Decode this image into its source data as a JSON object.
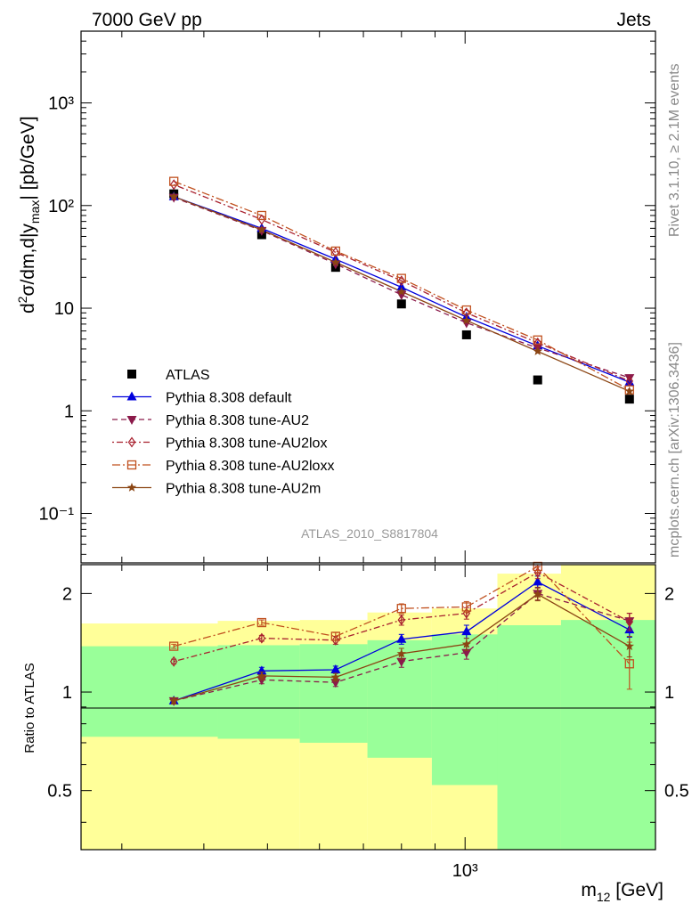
{
  "header": {
    "left": "7000 GeV pp",
    "right": "Jets"
  },
  "side_labels": {
    "rivet": "Rivet 3.1.10, ≥ 2.1M events",
    "mcplots": "mcplots.cern.ch [arXiv:1306.3436]"
  },
  "analysis_id": "ATLAS_2010_S8817804",
  "chart_data": [
    {
      "type": "scatter",
      "panel": "main",
      "xlabel_main": "m",
      "xlabel_sub": "12",
      "xlabel_unit": "[GeV]",
      "ylabel": "d²σ/dm,d|y_max| [pb/GeV]",
      "x_scale": "log",
      "y_scale": "log",
      "xlim": [
        260,
        1950
      ],
      "ylim": [
        0.033,
        5000
      ],
      "x_tick_labels": [
        {
          "v": 1000,
          "label": "10³"
        }
      ],
      "y_tick_labels": [
        {
          "v": 0.1,
          "label": "10⁻¹"
        },
        {
          "v": 1,
          "label": "1"
        },
        {
          "v": 10,
          "label": "10"
        },
        {
          "v": 100,
          "label": "10²"
        },
        {
          "v": 1000,
          "label": "10³"
        }
      ],
      "x": [
        360,
        490,
        635,
        800,
        1005,
        1290,
        1780
      ],
      "series": [
        {
          "name": "ATLAS",
          "marker": "square",
          "color": "#000000",
          "dash": "none",
          "values": [
            130,
            52,
            25,
            11,
            5.5,
            2.0,
            1.3
          ]
        },
        {
          "name": "Pythia 8.308 default",
          "marker": "triangle-up",
          "color": "#0000dd",
          "dash": "none",
          "values": [
            122,
            60,
            30,
            16,
            8.2,
            4.3,
            1.9
          ]
        },
        {
          "name": "Pythia 8.308 tune-AU2",
          "marker": "triangle-down",
          "color": "#8b1a4a",
          "dash": "dashed",
          "values": [
            120,
            57,
            27,
            13.5,
            7.2,
            4.1,
            2.1
          ]
        },
        {
          "name": "Pythia 8.308 tune-AU2lox",
          "marker": "diamond",
          "color": "#a8202e",
          "dash": "dotdash",
          "values": [
            160,
            73,
            35,
            18.5,
            9.0,
            4.6,
            1.95
          ]
        },
        {
          "name": "Pythia 8.308 tune-AU2loxx",
          "marker": "square-open",
          "color": "#c0501e",
          "dash": "dashdot",
          "values": [
            172,
            80,
            36,
            19.5,
            9.6,
            4.9,
            1.6
          ]
        },
        {
          "name": "Pythia 8.308 tune-AU2m",
          "marker": "star",
          "color": "#8b4513",
          "dash": "none",
          "values": [
            122,
            58,
            28,
            14.5,
            7.6,
            3.8,
            1.55
          ]
        }
      ]
    },
    {
      "type": "line",
      "panel": "ratio",
      "ylabel": "Ratio to ATLAS",
      "x_scale": "log",
      "y_scale": "log",
      "xlim": [
        260,
        1950
      ],
      "ylim": [
        0.33,
        2.45
      ],
      "y_tick_labels": [
        {
          "v": 0.5,
          "label": "0.5"
        },
        {
          "v": 1,
          "label": "1"
        },
        {
          "v": 2,
          "label": "2"
        }
      ],
      "bin_edges": [
        260,
        420,
        560,
        710,
        890,
        1120,
        1400,
        1950
      ],
      "band_green": [
        [
          0.73,
          1.38
        ],
        [
          0.72,
          1.39
        ],
        [
          0.7,
          1.4
        ],
        [
          0.63,
          1.44
        ],
        [
          0.52,
          1.5
        ],
        [
          0.3,
          1.6
        ],
        [
          0.3,
          1.66
        ]
      ],
      "band_yellow": [
        [
          0.3,
          1.62
        ],
        [
          0.3,
          1.65
        ],
        [
          0.3,
          1.66
        ],
        [
          0.3,
          1.75
        ],
        [
          0.3,
          1.8
        ],
        [
          0.3,
          2.3
        ],
        [
          0.3,
          2.5
        ]
      ],
      "x": [
        360,
        490,
        635,
        800,
        1005,
        1290,
        1780
      ],
      "series": [
        {
          "name": "Pythia 8.308 default",
          "marker": "triangle-up",
          "color": "#0000dd",
          "dash": "none",
          "values": [
            0.94,
            1.16,
            1.17,
            1.45,
            1.53,
            2.17,
            1.55
          ],
          "err": [
            0.02,
            0.03,
            0.03,
            0.05,
            0.07,
            0.09,
            0.08
          ]
        },
        {
          "name": "Pythia 8.308 tune-AU2",
          "marker": "triangle-down",
          "color": "#8b1a4a",
          "dash": "dashed",
          "values": [
            0.94,
            1.09,
            1.07,
            1.24,
            1.32,
            2.0,
            1.65
          ],
          "err": [
            0.02,
            0.03,
            0.03,
            0.05,
            0.06,
            0.09,
            0.09
          ]
        },
        {
          "name": "Pythia 8.308 tune-AU2lox",
          "marker": "diamond",
          "color": "#a8202e",
          "dash": "dotdash",
          "values": [
            1.24,
            1.46,
            1.44,
            1.66,
            1.74,
            2.32,
            1.64
          ],
          "err": [
            0.02,
            0.03,
            0.04,
            0.06,
            0.07,
            0.1,
            0.1
          ]
        },
        {
          "name": "Pythia 8.308 tune-AU2loxx",
          "marker": "square-open",
          "color": "#c0501e",
          "dash": "dashdot",
          "values": [
            1.38,
            1.63,
            1.48,
            1.8,
            1.82,
            2.42,
            1.22
          ],
          "err": [
            0.02,
            0.03,
            0.04,
            0.06,
            0.07,
            0.1,
            0.2
          ]
        },
        {
          "name": "Pythia 8.308 tune-AU2m",
          "marker": "star",
          "color": "#8b4513",
          "dash": "none",
          "values": [
            0.94,
            1.12,
            1.11,
            1.31,
            1.4,
            1.99,
            1.38
          ],
          "err": [
            0.02,
            0.03,
            0.03,
            0.05,
            0.06,
            0.09,
            0.1
          ]
        }
      ]
    }
  ]
}
